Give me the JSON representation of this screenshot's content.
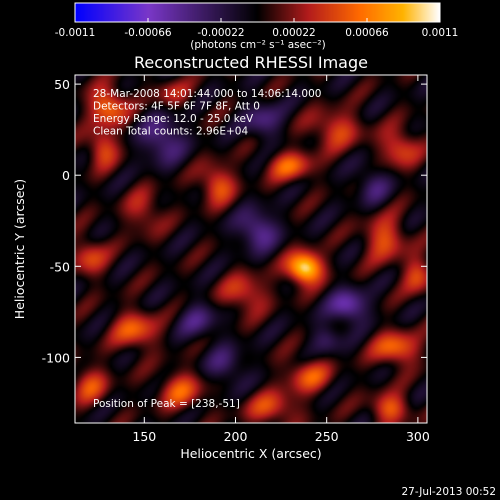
{
  "chart_data": {
    "type": "heatmap",
    "title": "Reconstructed RHESSI Image",
    "xlabel": "Heliocentric X (arcsec)",
    "ylabel": "Heliocentric Y (arcsec)",
    "xlim": [
      112,
      305
    ],
    "ylim": [
      -136,
      55
    ],
    "x_ticks": [
      150,
      200,
      250,
      300
    ],
    "y_ticks": [
      -100,
      -50,
      0,
      50
    ],
    "colorbar": {
      "min": -0.0011,
      "max": 0.0011,
      "tick_values": [
        -0.0011,
        -0.00066,
        -0.00022,
        0.00022,
        0.00066,
        0.0011
      ],
      "tick_labels": [
        "-0.0011",
        "-0.00066",
        "-0.00022",
        "0.00022",
        "0.00066",
        "0.0011"
      ],
      "unit_label": "(photons cm⁻² s⁻¹ asec⁻²)",
      "colormap": [
        "#0000ff",
        "#7a37c8",
        "#000000",
        "#b31c1c",
        "#ff6a00",
        "#ffb300",
        "#ffffff"
      ]
    },
    "annotations": [
      "28-Mar-2008 14:01:44.000 to 14:06:14.000",
      "Detectors: 4F 5F 6F 7F 8F, Att 0",
      "Energy Range: 12.0 - 25.0 keV",
      "Clean    Total counts: 2.96E+04"
    ],
    "peak_label": "Position of Peak = [238,-51]",
    "peak": {
      "x": 238,
      "y": -51
    },
    "footer_date": "27-Jul-2013 00:52",
    "grid": false
  }
}
